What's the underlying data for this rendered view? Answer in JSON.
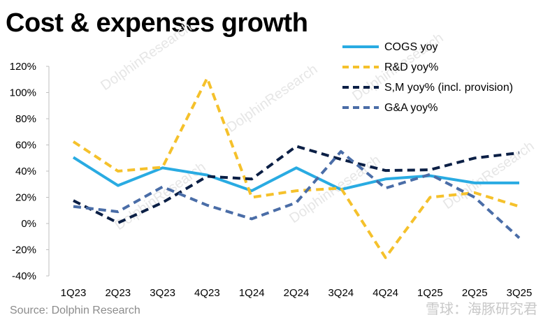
{
  "title": "Cost & expenses growth",
  "source": "Source: Dolphin Research",
  "watermark": {
    "text": "DolphinResearch",
    "corner": "雪球：海豚研究君"
  },
  "chart_data": {
    "type": "line",
    "categories": [
      "1Q23",
      "2Q23",
      "3Q23",
      "4Q23",
      "1Q24",
      "2Q24",
      "3Q24",
      "4Q24",
      "1Q25",
      "2Q25",
      "3Q25"
    ],
    "ylim": [
      -40,
      120
    ],
    "yticks": [
      -40,
      -20,
      0,
      20,
      40,
      60,
      80,
      100,
      120
    ],
    "ytick_format": "percent",
    "grid": false,
    "legend_position": "top-right",
    "series": [
      {
        "name": "COGS yoy",
        "color": "#29ABE2",
        "style": "solid",
        "values": [
          50.5,
          29,
          42.5,
          37,
          25,
          42.5,
          26,
          34,
          36.5,
          31,
          31
        ]
      },
      {
        "name": "R&D yoy%",
        "color": "#F5C12B",
        "style": "dashed",
        "values": [
          62.5,
          40,
          43,
          111,
          20,
          25,
          27,
          -26,
          20,
          23.5,
          13
        ]
      },
      {
        "name": "S,M yoy% (incl. provision)",
        "color": "#0B1F45",
        "style": "dashed",
        "values": [
          17.5,
          0.5,
          16,
          36,
          34,
          59,
          49,
          40.5,
          41,
          50,
          54
        ]
      },
      {
        "name": "G&A yoy%",
        "color": "#4A6DA7",
        "style": "dashed",
        "values": [
          13,
          9,
          28,
          14,
          3.5,
          16,
          55,
          27,
          37.5,
          20,
          -11
        ]
      }
    ]
  }
}
